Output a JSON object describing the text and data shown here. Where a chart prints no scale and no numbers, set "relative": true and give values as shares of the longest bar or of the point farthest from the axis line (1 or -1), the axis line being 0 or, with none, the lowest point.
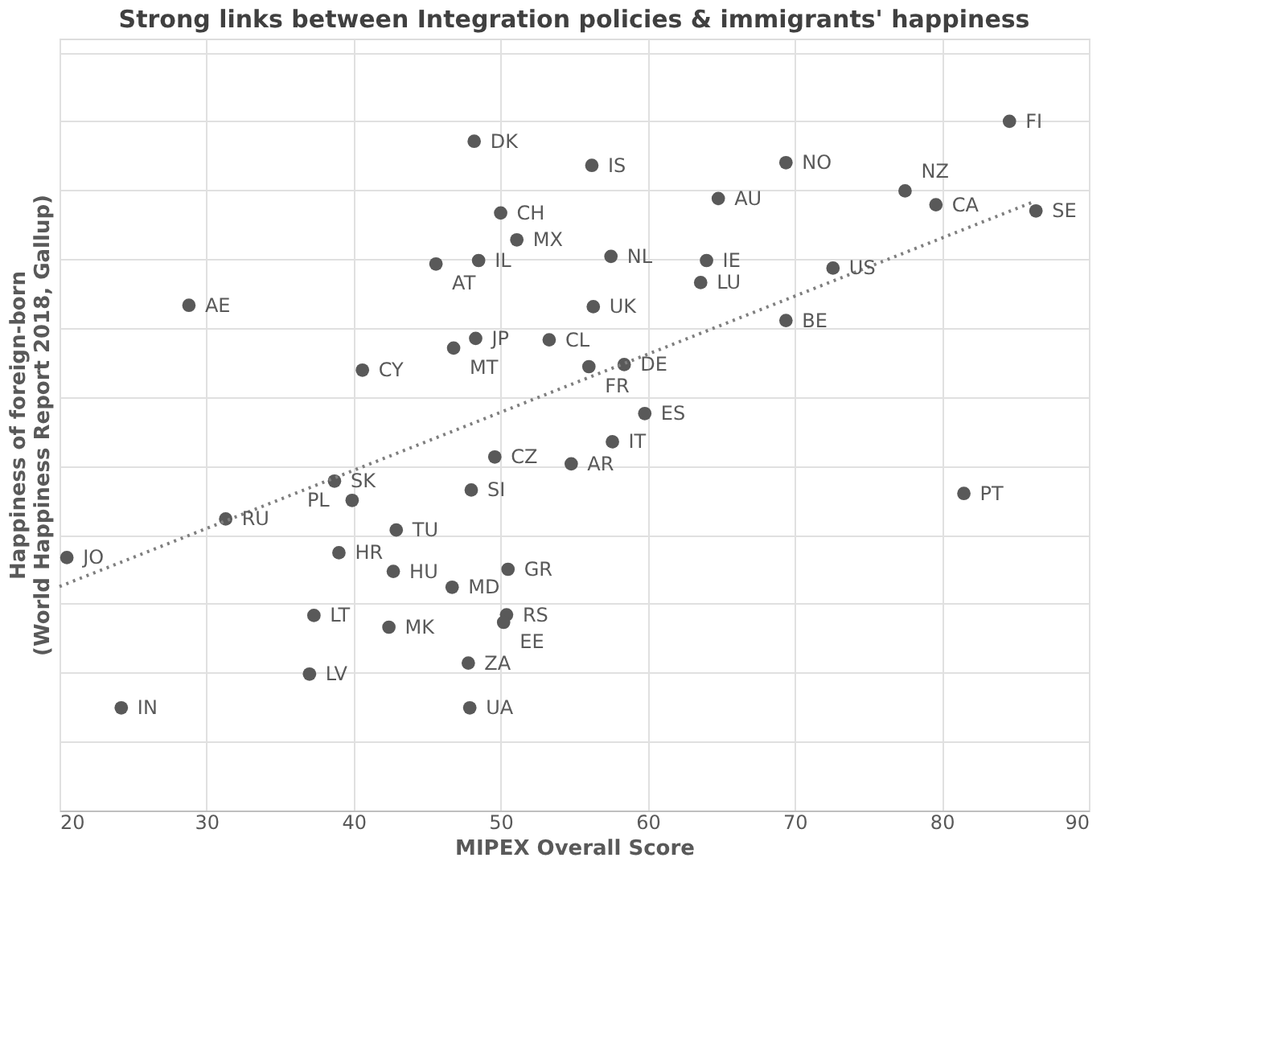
{
  "chart_data": {
    "type": "scatter",
    "title": "Strong links between Integration policies & immigrants' happiness",
    "xlabel": "MIPEX Overall Score",
    "ylabel": "Happiness of foreign-born\n(World Happiness Report 2018, Gallup)",
    "relative": true,
    "xlim": [
      20,
      90
    ],
    "xticks": [
      20,
      30,
      40,
      50,
      60,
      70,
      80,
      90
    ],
    "grid": true,
    "tick_labels": "x",
    "series": [
      {
        "marker": "circle",
        "color": "#595959",
        "x": [
          48.2,
          50.0,
          51.1,
          48.5,
          45.6,
          28.8,
          48.3,
          46.8,
          53.3,
          40.6,
          84.6,
          56.2,
          69.4,
          77.5,
          79.6,
          86.4,
          64.8,
          57.5,
          64.0,
          63.6,
          72.6,
          56.3,
          69.4,
          56.0,
          58.4,
          59.8,
          57.6,
          49.6,
          54.8,
          38.7,
          48.0,
          39.9,
          31.3,
          42.9,
          20.5,
          39.0,
          42.7,
          50.5,
          46.7,
          37.3,
          50.4,
          50.2,
          42.4,
          47.8,
          37.0,
          24.2,
          47.9,
          81.5
        ],
        "values": [
          0.971,
          0.867,
          0.828,
          0.798,
          0.793,
          0.733,
          0.685,
          0.671,
          0.683,
          0.639,
          1.0,
          0.936,
          0.94,
          0.899,
          0.879,
          0.87,
          0.888,
          0.804,
          0.798,
          0.766,
          0.787,
          0.731,
          0.711,
          0.644,
          0.647,
          0.576,
          0.535,
          0.513,
          0.503,
          0.478,
          0.465,
          0.45,
          0.423,
          0.407,
          0.367,
          0.374,
          0.347,
          0.35,
          0.324,
          0.283,
          0.284,
          0.273,
          0.266,
          0.214,
          0.198,
          0.149,
          0.149,
          0.46
        ]
      },
      {
        "type": "line",
        "color": "#7f7f7f",
        "line_style": "dotted",
        "x": [
          20,
          86.1
        ],
        "values": [
          0.325,
          0.882
        ]
      }
    ],
    "annotations": [
      {
        "text": "DK",
        "x": 48.2,
        "y": 0.971
      },
      {
        "text": "CH",
        "x": 50.0,
        "y": 0.867
      },
      {
        "text": "MX",
        "x": 51.1,
        "y": 0.828
      },
      {
        "text": "IL",
        "x": 48.5,
        "y": 0.798
      },
      {
        "text": "AT",
        "x": 45.6,
        "y": 0.793
      },
      {
        "text": "AE",
        "x": 28.8,
        "y": 0.733
      },
      {
        "text": "JP",
        "x": 48.3,
        "y": 0.685
      },
      {
        "text": "MT",
        "x": 46.8,
        "y": 0.671
      },
      {
        "text": "CL",
        "x": 53.3,
        "y": 0.683
      },
      {
        "text": "CY",
        "x": 40.6,
        "y": 0.639
      },
      {
        "text": "FI",
        "x": 84.6,
        "y": 1.0
      },
      {
        "text": "IS",
        "x": 56.2,
        "y": 0.936
      },
      {
        "text": "NO",
        "x": 69.4,
        "y": 0.94
      },
      {
        "text": "NZ",
        "x": 77.5,
        "y": 0.899
      },
      {
        "text": "CA",
        "x": 79.6,
        "y": 0.879
      },
      {
        "text": "SE",
        "x": 86.4,
        "y": 0.87
      },
      {
        "text": "AU",
        "x": 64.8,
        "y": 0.888
      },
      {
        "text": "NL",
        "x": 57.5,
        "y": 0.804
      },
      {
        "text": "IE",
        "x": 64.0,
        "y": 0.798
      },
      {
        "text": "LU",
        "x": 63.6,
        "y": 0.766
      },
      {
        "text": "US",
        "x": 72.6,
        "y": 0.787
      },
      {
        "text": "UK",
        "x": 56.3,
        "y": 0.731
      },
      {
        "text": "BE",
        "x": 69.4,
        "y": 0.711
      },
      {
        "text": "FR",
        "x": 56.0,
        "y": 0.644
      },
      {
        "text": "DE",
        "x": 58.4,
        "y": 0.647
      },
      {
        "text": "ES",
        "x": 59.8,
        "y": 0.576
      },
      {
        "text": "IT",
        "x": 57.6,
        "y": 0.535
      },
      {
        "text": "CZ",
        "x": 49.6,
        "y": 0.513
      },
      {
        "text": "AR",
        "x": 54.8,
        "y": 0.503
      },
      {
        "text": "SK",
        "x": 38.7,
        "y": 0.478
      },
      {
        "text": "SI",
        "x": 48.0,
        "y": 0.465
      },
      {
        "text": "PL",
        "x": 39.9,
        "y": 0.45
      },
      {
        "text": "RU",
        "x": 31.3,
        "y": 0.423
      },
      {
        "text": "TU",
        "x": 42.9,
        "y": 0.407
      },
      {
        "text": "JO",
        "x": 20.5,
        "y": 0.367
      },
      {
        "text": "HR",
        "x": 39.0,
        "y": 0.374
      },
      {
        "text": "HU",
        "x": 42.7,
        "y": 0.347
      },
      {
        "text": "GR",
        "x": 50.5,
        "y": 0.35
      },
      {
        "text": "MD",
        "x": 46.7,
        "y": 0.324
      },
      {
        "text": "LT",
        "x": 37.3,
        "y": 0.283
      },
      {
        "text": "RS",
        "x": 50.4,
        "y": 0.284
      },
      {
        "text": "EE",
        "x": 50.2,
        "y": 0.273
      },
      {
        "text": "MK",
        "x": 42.4,
        "y": 0.266
      },
      {
        "text": "ZA",
        "x": 47.8,
        "y": 0.214
      },
      {
        "text": "LV",
        "x": 37.0,
        "y": 0.198
      },
      {
        "text": "IN",
        "x": 24.2,
        "y": 0.149
      },
      {
        "text": "UA",
        "x": 47.9,
        "y": 0.149
      },
      {
        "text": "PT",
        "x": 81.5,
        "y": 0.46
      }
    ]
  }
}
